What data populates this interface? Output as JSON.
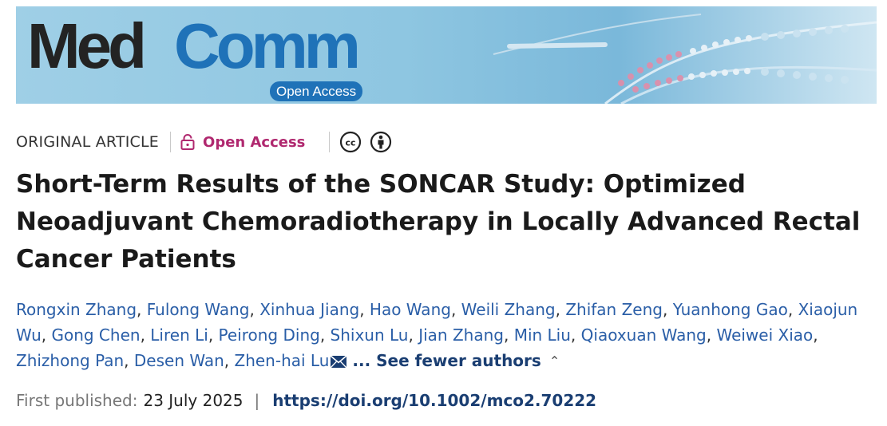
{
  "journal": {
    "logo_med": "Med",
    "logo_comm": "Comm",
    "logo_badge": "Open Access"
  },
  "meta": {
    "article_type": "ORIGINAL ARTICLE",
    "open_access_label": "Open Access",
    "icons": [
      "lock-icon",
      "creative-commons-icon",
      "attribution-icon"
    ]
  },
  "title": "Short-Term Results of the SONCAR Study: Optimized Neoadjuvant Chemoradiotherapy in Locally Advanced Rectal Cancer Patients",
  "authors": {
    "list": [
      "Rongxin Zhang",
      "Fulong Wang",
      "Xinhua Jiang",
      "Hao Wang",
      "Weili Zhang",
      "Zhifan Zeng",
      "Yuanhong Gao",
      "Xiaojun Wu",
      "Gong Chen",
      "Liren Li",
      "Peirong Ding",
      "Shixun Lu",
      "Jian Zhang",
      "Min Liu",
      "Qiaoxuan Wang",
      "Weiwei Xiao",
      "Zhizhong Pan",
      "Desen Wan",
      "Zhen-hai Lu"
    ],
    "see_fewer_label": "... See fewer authors"
  },
  "published": {
    "label": "First published:",
    "date": "23 July 2025",
    "separator": "|",
    "doi": "https://doi.org/10.1002/mco2.70222"
  },
  "colors": {
    "open_access": "#b0286f",
    "link": "#2a5ea7",
    "doi": "#1a3e72",
    "logo_blue": "#1f72b8"
  }
}
